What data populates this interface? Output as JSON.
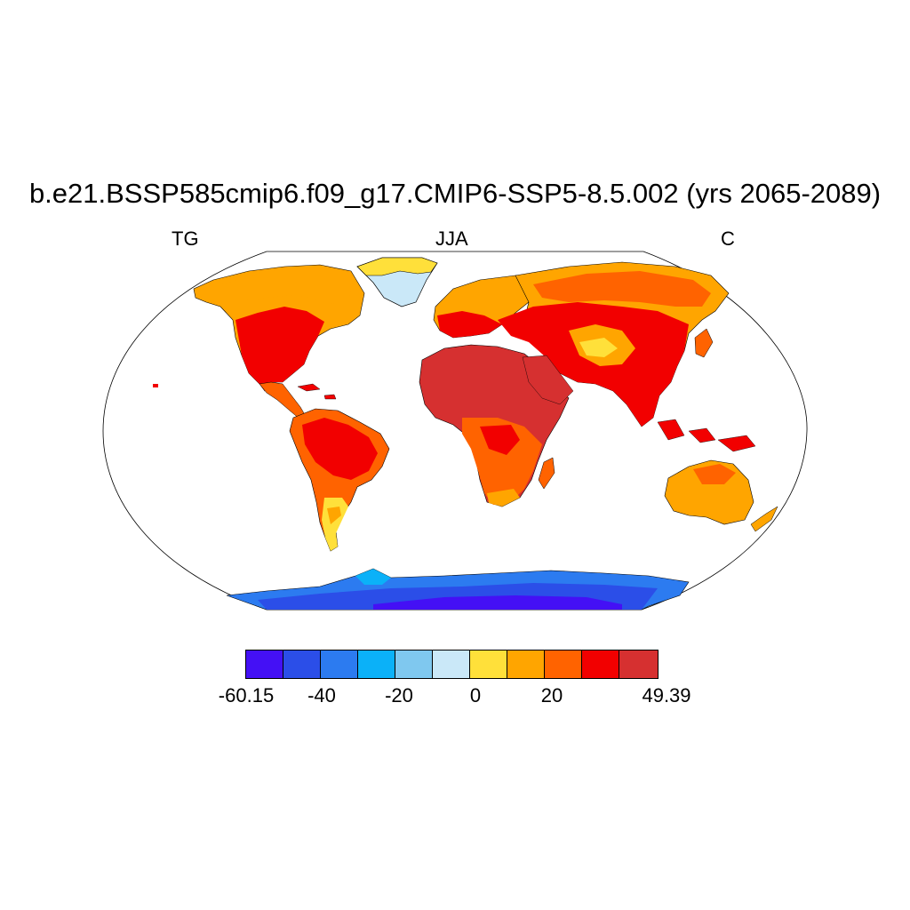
{
  "title": "b.e21.BSSP585cmip6.f09_g17.CMIP6-SSP5-8.5.002 (yrs 2065-2089)",
  "subtitle_left": "TG",
  "subtitle_center": "JJA",
  "subtitle_right": "C",
  "colorbar": {
    "colors": [
      "#4410f5",
      "#2b4ee8",
      "#2c7bf0",
      "#0bb1f8",
      "#7fc8ef",
      "#cae8f8",
      "#ffe03a",
      "#ffa500",
      "#ff6300",
      "#f20000",
      "#d63030"
    ],
    "labels": [
      "-60.15",
      "-40",
      "-20",
      "0",
      "20",
      "49.39"
    ]
  },
  "map": {
    "projection": "Robinson",
    "ocean": "#ffffff",
    "coastline": "#000000"
  }
}
